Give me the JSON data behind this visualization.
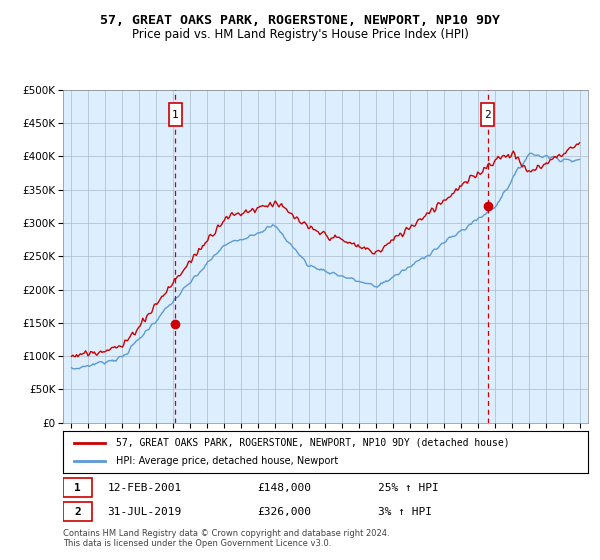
{
  "title": "57, GREAT OAKS PARK, ROGERSTONE, NEWPORT, NP10 9DY",
  "subtitle": "Price paid vs. HM Land Registry's House Price Index (HPI)",
  "legend_line1": "57, GREAT OAKS PARK, ROGERSTONE, NEWPORT, NP10 9DY (detached house)",
  "legend_line2": "HPI: Average price, detached house, Newport",
  "sale1_date": 2001.12,
  "sale1_price": 148000,
  "sale2_date": 2019.58,
  "sale2_price": 326000,
  "sale1_text": "12-FEB-2001",
  "sale1_price_str": "£148,000",
  "sale1_pct": "25% ↑ HPI",
  "sale2_text": "31-JUL-2019",
  "sale2_price_str": "£326,000",
  "sale2_pct": "3% ↑ HPI",
  "footer1": "Contains HM Land Registry data © Crown copyright and database right 2024.",
  "footer2": "This data is licensed under the Open Government Licence v3.0.",
  "red_color": "#cc0000",
  "blue_color": "#5b9bd5",
  "dashed_color": "#cc0000",
  "chart_bg": "#ddeeff",
  "background_color": "#ffffff",
  "grid_color": "#aabbcc",
  "ylim_min": 0,
  "ylim_max": 500000,
  "xlim_min": 1994.5,
  "xlim_max": 2025.5
}
